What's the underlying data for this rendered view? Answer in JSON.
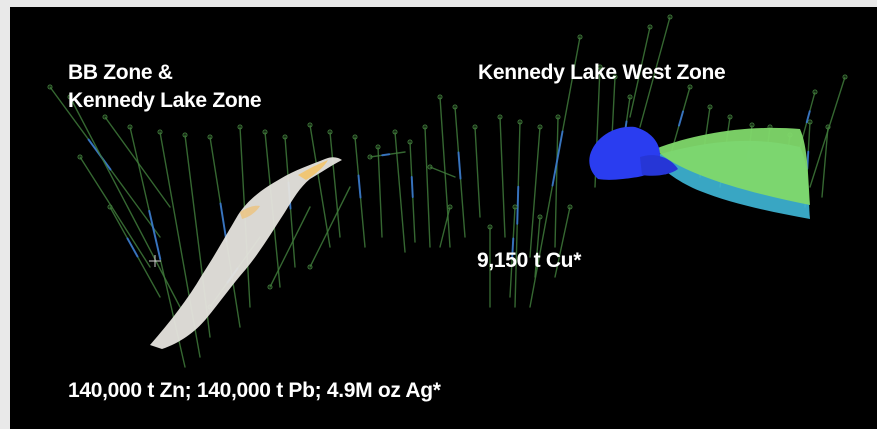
{
  "image": {
    "background_color": "#000000",
    "frame_color": "#e9e9e9",
    "labels": {
      "left_zone_line1": "BB Zone &",
      "left_zone_line2": "Kennedy Lake Zone",
      "right_zone": "Kennedy Lake West Zone",
      "copper_resource": "9,150 t Cu*",
      "zinc_lead_silver_resource": "140,000 t Zn; 140,000 t Pb; 4.9M oz Ag*"
    },
    "colors": {
      "drill_hole": "#3f7a3a",
      "bb_zone_body": "#e6e4de",
      "bb_zone_highlight": "#f2c46a",
      "west_zone_blue": "#2a3df0",
      "west_zone_green": "#7fd86a",
      "west_zone_cyan": "#3fb8d8"
    }
  }
}
